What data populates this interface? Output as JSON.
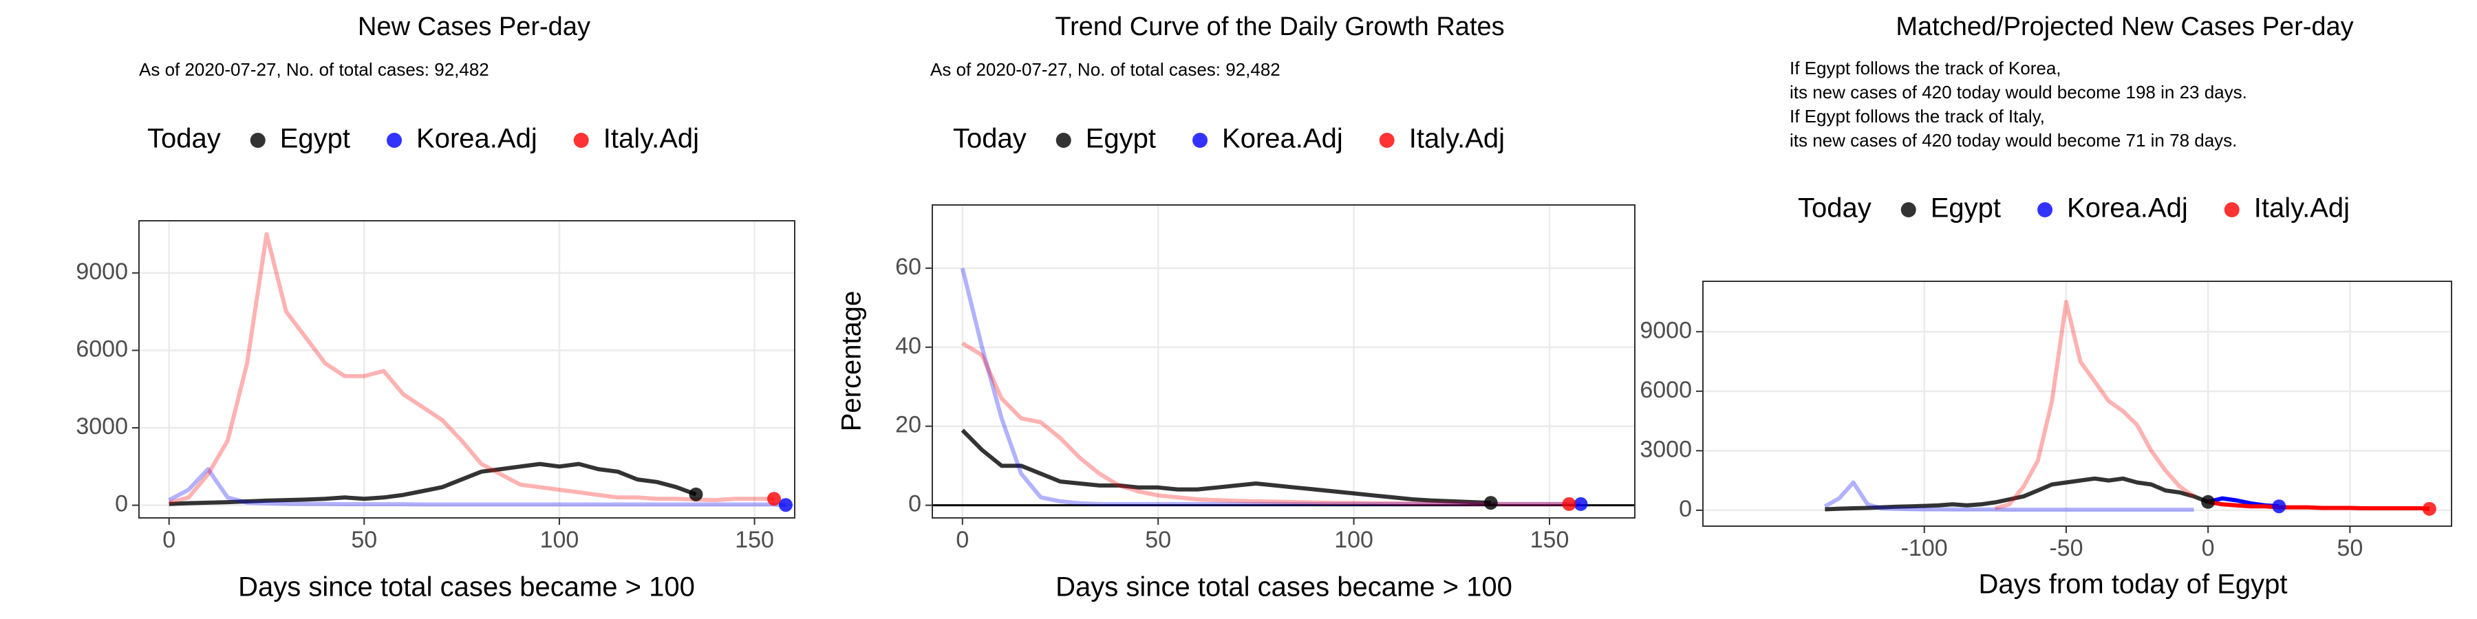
{
  "charts": [
    {
      "type": "line",
      "title": "New Cases Per-day",
      "subtitle": "As of 2020-07-27, No. of total cases: 92,482",
      "xlabel": "Days since total cases became > 100",
      "legend_title": "Today",
      "legend_position": "top",
      "grid": true,
      "xlim": [
        -7.7,
        160.3
      ],
      "xticks": [
        0,
        50,
        100,
        150
      ],
      "ylim": [
        -490,
        11020
      ],
      "yticks": [
        0,
        3000,
        6000,
        9000
      ],
      "x": [
        0,
        5,
        10,
        15,
        20,
        25,
        30,
        35,
        40,
        45,
        50,
        55,
        60,
        65,
        70,
        75,
        80,
        85,
        90,
        95,
        100,
        105,
        110,
        115,
        120,
        125,
        130,
        135,
        140,
        145,
        150,
        155,
        158
      ],
      "series": [
        {
          "name": "Egypt",
          "color": "#000000",
          "opacity": 0.8,
          "values": [
            50,
            80,
            100,
            120,
            150,
            180,
            200,
            220,
            250,
            300,
            250,
            300,
            400,
            550,
            700,
            1000,
            1300,
            1400,
            1500,
            1600,
            1500,
            1600,
            1400,
            1300,
            1000,
            900,
            700,
            420,
            null,
            null,
            null,
            null,
            null
          ]
        },
        {
          "name": "Korea.Adj",
          "color": "#0000ff",
          "opacity": 0.3,
          "values": [
            200,
            600,
            1400,
            300,
            100,
            80,
            60,
            50,
            50,
            40,
            40,
            40,
            40,
            30,
            30,
            30,
            30,
            30,
            30,
            30,
            30,
            30,
            30,
            30,
            30,
            30,
            30,
            30,
            30,
            30,
            30,
            30,
            10
          ]
        },
        {
          "name": "Italy.Adj",
          "color": "#ff0000",
          "opacity": 0.3,
          "values": [
            100,
            300,
            1200,
            2500,
            5500,
            10500,
            7500,
            6500,
            5500,
            5000,
            5000,
            5200,
            4300,
            3800,
            3300,
            2500,
            1600,
            1200,
            800,
            700,
            600,
            500,
            400,
            300,
            300,
            250,
            250,
            220,
            200,
            250,
            250,
            250,
            null
          ]
        }
      ]
    },
    {
      "type": "line",
      "title": "Trend Curve of the Daily Growth Rates",
      "subtitle": "As of 2020-07-27, No. of total cases: 92,482",
      "xlabel": "Days since total cases became > 100",
      "ylabel": "Percentage",
      "legend_title": "Today",
      "legend_position": "top",
      "grid": true,
      "hline": 0,
      "xlim": [
        -7.7,
        171.8
      ],
      "xticks": [
        0,
        50,
        100,
        150
      ],
      "ylim": [
        -3.2,
        76
      ],
      "yticks": [
        0,
        20,
        40,
        60
      ],
      "x": [
        0,
        5,
        10,
        15,
        20,
        25,
        30,
        35,
        40,
        45,
        50,
        55,
        60,
        65,
        70,
        75,
        80,
        85,
        90,
        95,
        100,
        105,
        110,
        115,
        120,
        125,
        130,
        135,
        140,
        145,
        150,
        155,
        158
      ],
      "series": [
        {
          "name": "Egypt",
          "color": "#000000",
          "opacity": 0.8,
          "values": [
            19,
            14,
            10,
            10,
            8,
            6,
            5.5,
            5,
            5,
            4.5,
            4.5,
            4,
            4,
            4.5,
            5,
            5.5,
            5,
            4.5,
            4,
            3.5,
            3,
            2.5,
            2,
            1.5,
            1.2,
            1,
            0.8,
            0.6,
            null,
            null,
            null,
            null,
            null
          ]
        },
        {
          "name": "Korea.Adj",
          "color": "#0000ff",
          "opacity": 0.3,
          "values": [
            60,
            40,
            22,
            8,
            2,
            1,
            0.5,
            0.3,
            0.3,
            0.3,
            0.3,
            0.3,
            0.3,
            0.3,
            0.3,
            0.3,
            0.3,
            0.3,
            0.3,
            0.3,
            0.3,
            0.3,
            0.3,
            0.3,
            0.3,
            0.3,
            0.3,
            0.3,
            0.3,
            0.3,
            0.3,
            0.3,
            0.3
          ]
        },
        {
          "name": "Italy.Adj",
          "color": "#ff0000",
          "opacity": 0.3,
          "values": [
            41,
            38,
            27,
            22,
            21,
            17,
            12,
            8,
            5,
            3.5,
            2.5,
            2,
            1.5,
            1.3,
            1.1,
            1,
            0.9,
            0.8,
            0.7,
            0.6,
            0.6,
            0.5,
            0.5,
            0.4,
            0.4,
            0.4,
            0.3,
            0.3,
            0.3,
            0.3,
            0.3,
            0.3,
            null
          ]
        }
      ]
    },
    {
      "type": "line",
      "title": "Matched/Projected New Cases Per-day",
      "annotations": [
        "If Egypt follows the track of Korea,",
        "its new cases of 420 today would become 198 in 23 days.",
        "If Egypt follows the track of Italy,",
        "its new cases of 420 today would become 71 in 78 days."
      ],
      "xlabel": "Days from today of Egypt",
      "legend_title": "Today",
      "legend_position": "top",
      "grid": true,
      "xlim": [
        -178,
        85.8
      ],
      "xticks": [
        -100,
        -50,
        0,
        50
      ],
      "ylim": [
        -800,
        11540
      ],
      "yticks": [
        0,
        3000,
        6000,
        9000
      ],
      "x": [
        -135,
        -130,
        -125,
        -120,
        -115,
        -110,
        -105,
        -100,
        -95,
        -90,
        -85,
        -80,
        -75,
        -70,
        -65,
        -60,
        -55,
        -50,
        -45,
        -40,
        -35,
        -30,
        -25,
        -20,
        -15,
        -10,
        -5,
        0,
        5,
        10,
        15,
        20,
        25,
        30,
        35,
        40,
        45,
        50,
        55,
        60,
        65,
        70,
        75,
        78
      ],
      "series": [
        {
          "name": "Egypt",
          "color": "#000000",
          "opacity": 0.8,
          "values": [
            50,
            80,
            100,
            120,
            150,
            180,
            200,
            220,
            250,
            300,
            250,
            300,
            400,
            550,
            700,
            1000,
            1300,
            1400,
            1500,
            1600,
            1500,
            1600,
            1400,
            1300,
            1000,
            900,
            700,
            420,
            null,
            null,
            null,
            null,
            null,
            null,
            null,
            null,
            null,
            null,
            null,
            null,
            null,
            null,
            null,
            null
          ]
        },
        {
          "name": "Korea.Adj",
          "color": "#0000ff",
          "opacity": 0.3,
          "values": [
            200,
            600,
            1400,
            300,
            100,
            80,
            60,
            50,
            50,
            40,
            40,
            40,
            40,
            30,
            30,
            30,
            30,
            30,
            30,
            30,
            30,
            30,
            30,
            30,
            30,
            30,
            30,
            420,
            600,
            500,
            350,
            250,
            198,
            null,
            null,
            null,
            null,
            null,
            null,
            null,
            null,
            null,
            null,
            null
          ]
        },
        {
          "name": "Italy.Adj",
          "color": "#ff0000",
          "opacity": 0.3,
          "values": [
            null,
            null,
            null,
            null,
            null,
            null,
            null,
            null,
            null,
            null,
            null,
            null,
            100,
            300,
            1200,
            2500,
            5500,
            10500,
            7500,
            6500,
            5500,
            5000,
            4300,
            3000,
            2000,
            1200,
            700,
            420,
            300,
            250,
            200,
            200,
            150,
            150,
            150,
            120,
            120,
            120,
            100,
            100,
            100,
            100,
            100,
            71
          ]
        }
      ]
    }
  ]
}
